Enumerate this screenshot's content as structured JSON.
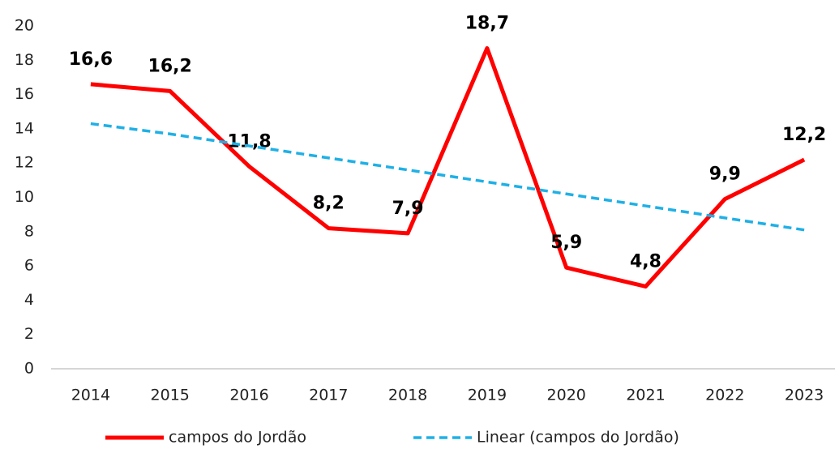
{
  "chart_data": {
    "type": "line",
    "categories": [
      "2014",
      "2015",
      "2016",
      "2017",
      "2018",
      "2019",
      "2020",
      "2021",
      "2022",
      "2023"
    ],
    "series": [
      {
        "name": "campos do Jordão",
        "color": "#ff0000",
        "values": [
          16.6,
          16.2,
          11.8,
          8.2,
          7.9,
          18.7,
          5.9,
          4.8,
          9.9,
          12.2
        ],
        "value_labels": [
          "16,6",
          "16,2",
          "11,8",
          "8,2",
          "7,9",
          "18,7",
          "5,9",
          "4,8",
          "9,9",
          "12,2"
        ]
      },
      {
        "name": "Linear (campos do Jordão)",
        "color": "#1fb0e6",
        "dashed": true,
        "values": [
          14.3,
          13.7,
          13.0,
          12.3,
          11.6,
          10.9,
          10.2,
          9.5,
          8.8,
          8.1
        ]
      }
    ],
    "ylim": [
      0,
      20
    ],
    "yticks": [
      0,
      2,
      4,
      6,
      8,
      10,
      12,
      14,
      16,
      18,
      20
    ],
    "grid": false,
    "legend": "bottom"
  }
}
